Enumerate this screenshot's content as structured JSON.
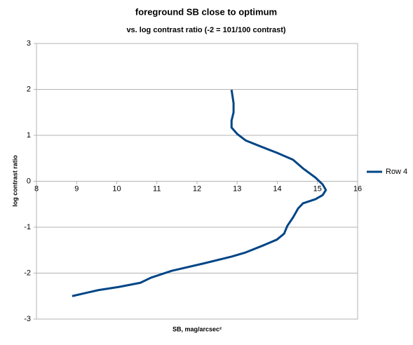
{
  "chart_data": {
    "type": "line",
    "title": "foreground SB close to optimum",
    "subtitle": "vs. log contrast ratio (-2 = 101/100 contrast)",
    "x_label": "SB, mag/arcsec²",
    "y_label": "log contrast ratio",
    "x": [
      8.89,
      9.54,
      10.06,
      10.59,
      10.85,
      11.37,
      12.16,
      12.86,
      13.21,
      13.64,
      13.99,
      14.17,
      14.25,
      14.39,
      14.52,
      14.64,
      14.95,
      15.13,
      15.21,
      15.13,
      14.95,
      14.64,
      14.39,
      13.99,
      13.55,
      13.21,
      13.0,
      12.86,
      12.86,
      12.91,
      12.91,
      12.86
    ],
    "series": [
      {
        "name": "Row 4",
        "color": "#004586",
        "values": [
          -2.5,
          -2.37,
          -2.3,
          -2.21,
          -2.1,
          -1.95,
          -1.79,
          -1.64,
          -1.55,
          -1.4,
          -1.27,
          -1.14,
          -0.97,
          -0.79,
          -0.59,
          -0.48,
          -0.39,
          -0.3,
          -0.19,
          -0.07,
          0.08,
          0.28,
          0.47,
          0.62,
          0.77,
          0.89,
          1.03,
          1.17,
          1.32,
          1.5,
          1.7,
          1.99
        ]
      }
    ],
    "xlim": [
      8,
      16
    ],
    "xticks": [
      8,
      9,
      10,
      11,
      12,
      13,
      14,
      15,
      16
    ],
    "ylim": [
      -3,
      3
    ],
    "yticks": [
      -3,
      -2,
      -1,
      0,
      1,
      2,
      3
    ],
    "grid": true,
    "legend": "right"
  }
}
